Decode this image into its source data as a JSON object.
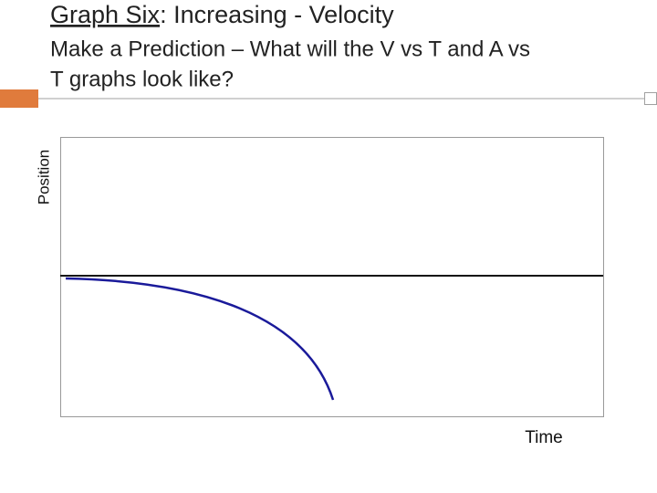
{
  "header": {
    "title_link": "Graph Six",
    "title_rest": ": Increasing - Velocity",
    "subtitle_line1": "Make a Prediction – What will the V vs T and A vs",
    "subtitle_line2": "T graphs look like?"
  },
  "graph": {
    "y_label": "Position",
    "x_label": "Time"
  }
}
